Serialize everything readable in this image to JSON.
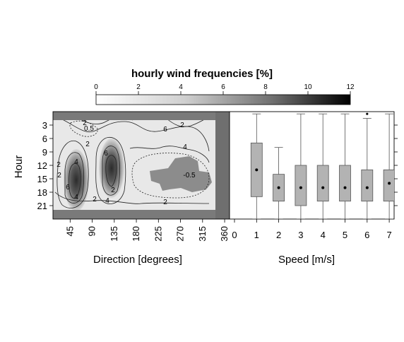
{
  "title": "hourly wind frequencies [%]",
  "colorbar": {
    "ticks": [
      "0",
      "2",
      "4",
      "6",
      "8",
      "10",
      "12"
    ],
    "min": 0,
    "max": 12,
    "color_low": "#ffffff",
    "color_high": "#000000"
  },
  "y_axis": {
    "label": "Hour",
    "ticks": [
      "3",
      "6",
      "9",
      "12",
      "15",
      "18",
      "21"
    ]
  },
  "direction_axis": {
    "label": "Direction [degrees]",
    "ticks": [
      "45",
      "90",
      "135",
      "180",
      "225",
      "270",
      "315",
      "360"
    ]
  },
  "speed_axis": {
    "label": "Speed [m/s]",
    "ticks": [
      "0",
      "1",
      "2",
      "3",
      "4",
      "5",
      "6",
      "7"
    ]
  },
  "contour_labels": [
    "0.5",
    "2",
    "4",
    "6",
    "2",
    "4",
    "6",
    "2",
    "4",
    "6",
    "2",
    "-0.5",
    "4",
    "2",
    "2",
    "2",
    "2"
  ],
  "colors": {
    "panel_bg": "#e8e8e8",
    "border_band": "#7a7a7a",
    "box_fill": "#b3b3b3",
    "patch_fill": "#8c8c8c"
  },
  "chart_data": [
    {
      "type": "heatmap",
      "title": "hourly wind frequencies [%]",
      "xlabel": "Direction [degrees]",
      "ylabel": "Hour",
      "xlim": [
        10,
        370
      ],
      "ylim": [
        0,
        24
      ],
      "value_range": [
        0,
        12
      ],
      "hotspots": [
        {
          "direction": 45,
          "hour": 14,
          "peak": 9
        },
        {
          "direction": 130,
          "hour": 11,
          "peak": 8
        }
      ],
      "contour_levels": [
        -0.5,
        0.5,
        2,
        4,
        6
      ]
    },
    {
      "type": "box",
      "xlabel": "Speed [m/s]",
      "ylabel": "Hour",
      "xlim": [
        0,
        7
      ],
      "ylim": [
        0,
        24
      ],
      "boxes": [
        {
          "speed": 1,
          "whisker_low": 0.5,
          "q1": 7,
          "median": 13,
          "q3": 19,
          "whisker_high": 24
        },
        {
          "speed": 2,
          "whisker_low": 8,
          "q1": 14,
          "median": 17,
          "q3": 20,
          "whisker_high": 24
        },
        {
          "speed": 3,
          "whisker_low": 0.5,
          "q1": 12,
          "median": 17,
          "q3": 21,
          "whisker_high": 24
        },
        {
          "speed": 4,
          "whisker_low": 0.5,
          "q1": 12,
          "median": 17,
          "q3": 20,
          "whisker_high": 24
        },
        {
          "speed": 5,
          "whisker_low": 0.5,
          "q1": 12,
          "median": 17,
          "q3": 20,
          "whisker_high": 24
        },
        {
          "speed": 6,
          "whisker_low": 1.5,
          "q1": 13,
          "median": 17,
          "q3": 20,
          "whisker_high": 24,
          "outliers": [
            0.5
          ]
        },
        {
          "speed": 7,
          "whisker_low": 0.5,
          "q1": 13,
          "median": 16,
          "q3": 20,
          "whisker_high": 24
        }
      ]
    }
  ]
}
